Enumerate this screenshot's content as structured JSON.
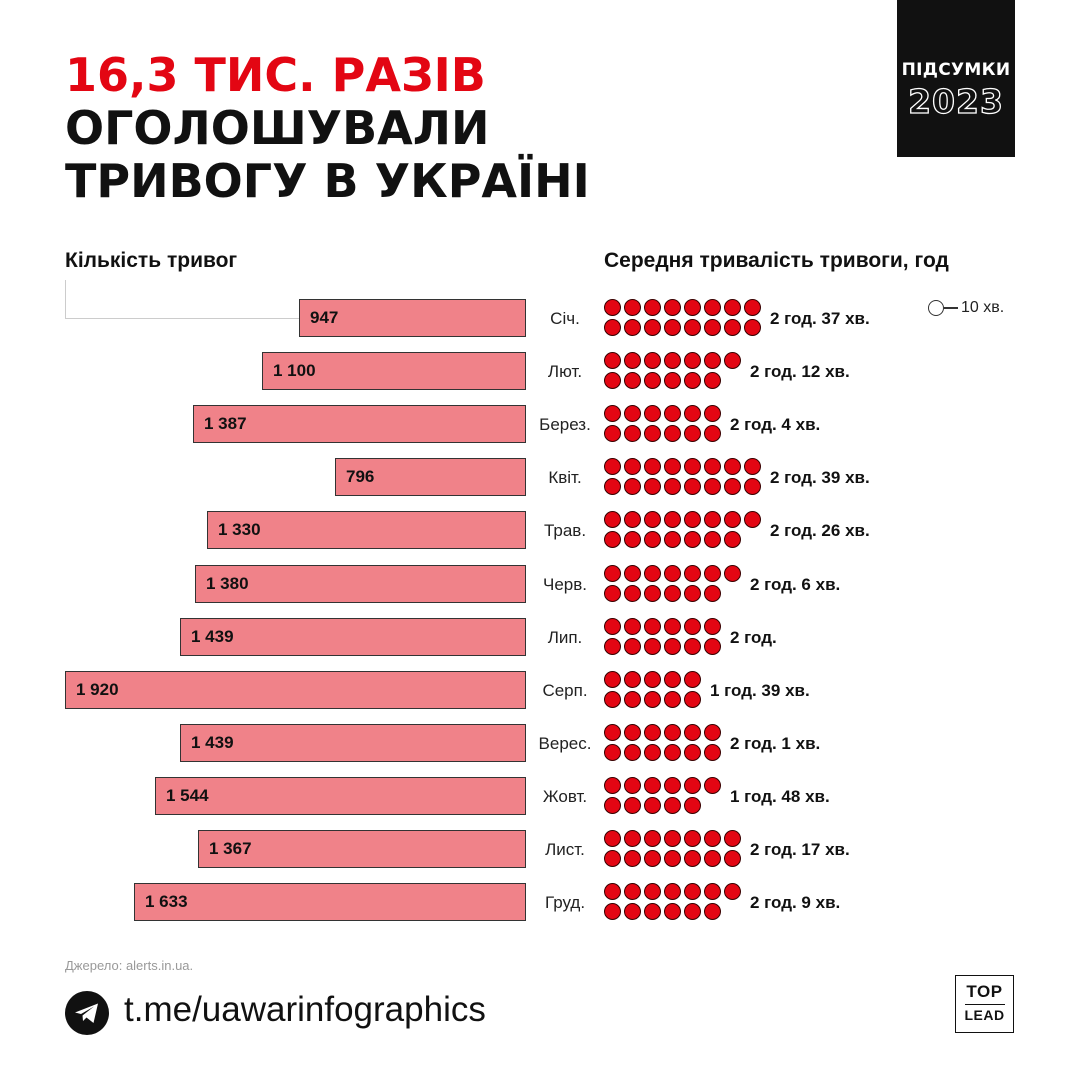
{
  "title": {
    "line1": "16,3 ТИС. РАЗІВ",
    "line2": "ОГОЛОШУВАЛИ",
    "line3": "ТРИВОГУ В УКРАЇНІ"
  },
  "badge": {
    "label": "ПІДСУМКИ",
    "year": "2023"
  },
  "left_header": "Кількість тривог",
  "right_header": "Середня тривалість тривоги, год",
  "legend": {
    "label": "10 хв."
  },
  "colors": {
    "accent_red": "#e30613",
    "bar_pink": "#f08289",
    "text": "#111111"
  },
  "chart_data": {
    "type": "bar",
    "categories": [
      "Січ.",
      "Лют.",
      "Берез.",
      "Квіт.",
      "Трав.",
      "Черв.",
      "Лип.",
      "Серп.",
      "Верес.",
      "Жовт.",
      "Лист.",
      "Груд."
    ],
    "values": [
      947,
      1100,
      1387,
      796,
      1330,
      1380,
      1439,
      1920,
      1439,
      1544,
      1367,
      1633
    ],
    "value_labels": [
      "947",
      "1 100",
      "1 387",
      "796",
      "1 330",
      "1 380",
      "1 439",
      "1 920",
      "1 439",
      "1 544",
      "1 367",
      "1 633"
    ],
    "duration_minutes": [
      157,
      132,
      124,
      159,
      146,
      126,
      120,
      99,
      121,
      108,
      137,
      129
    ],
    "duration_labels": [
      "2 год. 37 хв.",
      "2 год. 12 хв.",
      "2 год. 4 хв.",
      "2 год. 39 хв.",
      "2 год. 26 хв.",
      "2 год. 6 хв.",
      "2 год.",
      "1 год. 39 хв.",
      "2 год. 1 хв.",
      "1 год. 48 хв.",
      "2 год. 17 хв.",
      "2 год. 9 хв."
    ],
    "dot_counts": [
      16,
      13,
      12,
      16,
      15,
      13,
      12,
      10,
      12,
      11,
      14,
      13
    ],
    "xlabel": "",
    "ylabel": ""
  },
  "footer": {
    "source": "Джерело: alerts.in.ua.",
    "link": "t.me/uawarinfographics",
    "logo_top": "TOP",
    "logo_bottom": "LEAD"
  }
}
